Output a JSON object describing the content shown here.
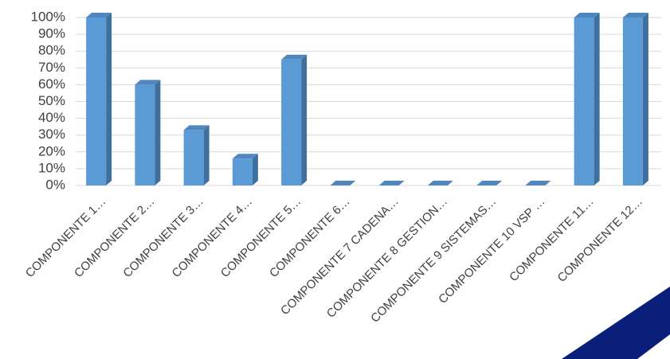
{
  "chart_data": {
    "type": "bar",
    "categories": [
      "COMPONENTE 1…",
      "COMPONENTE 2…",
      "COMPONENTE 3…",
      "COMPONENTE 4…",
      "COMPONENTE 5…",
      "COMPONENTE 6…",
      "COMPONENTE 7 CADENA…",
      "COMPONENTE 8 GESTION…",
      "COMPONENTE 9 SISTEMAS…",
      "COMPONENTE 10 VSP …",
      "COMPONENTE 11…",
      "COMPONENTE 12…"
    ],
    "values": [
      100,
      60,
      33,
      16,
      75,
      0,
      0,
      0,
      0,
      0,
      100,
      100
    ],
    "color": "#5b9bd5",
    "ylim": [
      0,
      100
    ],
    "yticks": [
      {
        "value": 0,
        "label": "0%"
      },
      {
        "value": 10,
        "label": "10%"
      },
      {
        "value": 20,
        "label": "20%"
      },
      {
        "value": 30,
        "label": "30%"
      },
      {
        "value": 40,
        "label": "40%"
      },
      {
        "value": 50,
        "label": "50%"
      },
      {
        "value": 60,
        "label": "60%"
      },
      {
        "value": 70,
        "label": "70%"
      },
      {
        "value": 80,
        "label": "80%"
      },
      {
        "value": 90,
        "label": "90%"
      },
      {
        "value": 100,
        "label": "100%"
      }
    ],
    "grid": true
  }
}
